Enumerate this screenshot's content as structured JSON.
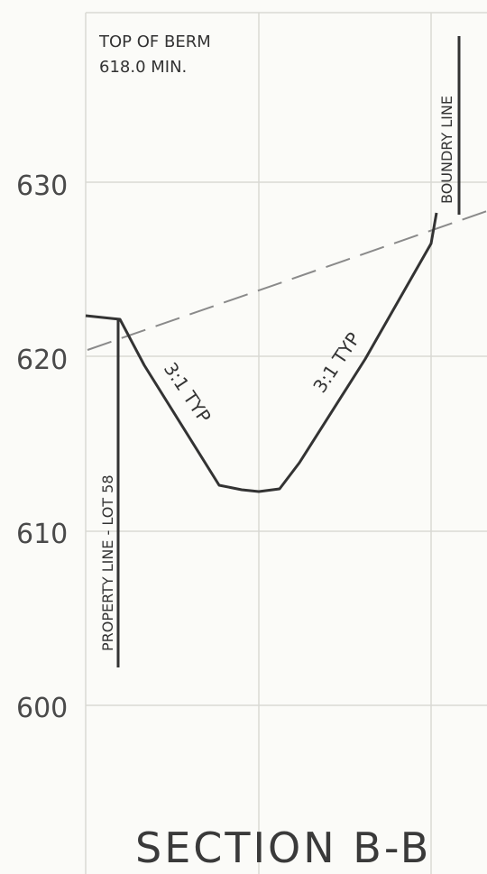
{
  "note": {
    "line1": "TOP OF BERM",
    "line2": "618.0 MIN."
  },
  "elevations": [
    "630",
    "620",
    "610",
    "600"
  ],
  "slopes": {
    "left": "3:1 TYP",
    "right": "3:1 TYP"
  },
  "lines": {
    "property": "PROPERTY LINE - LOT 58",
    "boundary": "BOUNDRY LINE"
  },
  "title": "SECTION B-B"
}
